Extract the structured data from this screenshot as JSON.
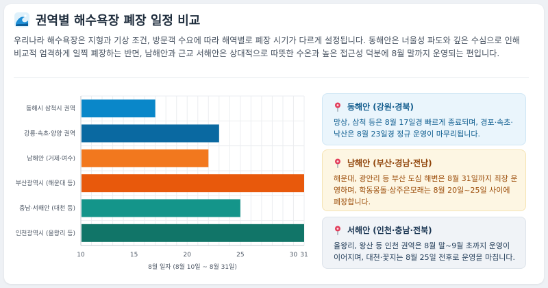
{
  "header": {
    "title": "권역별 해수욕장 폐장 일정 비교",
    "description": "우리나라 해수욕장은 지형과 기상 조건, 방문객 수요에 따라 해역별로 폐장 시기가 다르게 설정됩니다. 동해안은 너울성 파도와 깊은 수심으로 인해 비교적 엄격하게 일찍 폐장하는 반면, 남해안과 근교 서해안은 상대적으로 따뜻한 수온과 높은 접근성 덕분에 8월 말까지 운영되는 편입니다."
  },
  "chart_data": {
    "type": "bar",
    "orientation": "horizontal",
    "categories": [
      "동해시 삼척시 권역",
      "강릉·속초·양양 권역",
      "남해안 (거제·여수)",
      "부산광역시 (해운대 등)",
      "충남·서해안 (대천 등)",
      "인천광역시 (을왕리 등)"
    ],
    "values": [
      17,
      23,
      22,
      31,
      25,
      31
    ],
    "colors": [
      "#0a87c9",
      "#0a69a1",
      "#f2781e",
      "#e8590c",
      "#14958a",
      "#117568"
    ],
    "xlim": [
      10,
      31
    ],
    "xticks": [
      "10",
      "15",
      "20",
      "25",
      "30",
      "31"
    ],
    "xlabel": "8월 일자 (8월 10일 ~ 8월 31일)",
    "grid": true
  },
  "notes": [
    {
      "key": "east",
      "title": "동해안 (강원·경북)",
      "body": "망상, 삼척 등은 8월 17일경 빠르게 종료되며, 경포·속초·낙산은 8월 23일경 정규 운영이 마무리됩니다.",
      "icon": "pin-icon",
      "accent": "#0f5a8c"
    },
    {
      "key": "south",
      "title": "남해안 (부산·경남·전남)",
      "body": "해운대, 광안리 등 부산 도심 해변은 8월 31일까지 최장 운영하며, 학동몽돌·상주은모래는 8월 20일~25일 사이에 폐장합니다.",
      "icon": "pin-icon",
      "accent": "#8f4308"
    },
    {
      "key": "west",
      "title": "서해안 (인천·충남·전북)",
      "body": "을왕리, 왕산 등 인천 권역은 8월 말~9월 초까지 운영이 이어지며, 대천·꽃지는 8월 25일 전후로 운영을 마칩니다.",
      "icon": "pin-icon",
      "accent": "#1a3552"
    }
  ]
}
